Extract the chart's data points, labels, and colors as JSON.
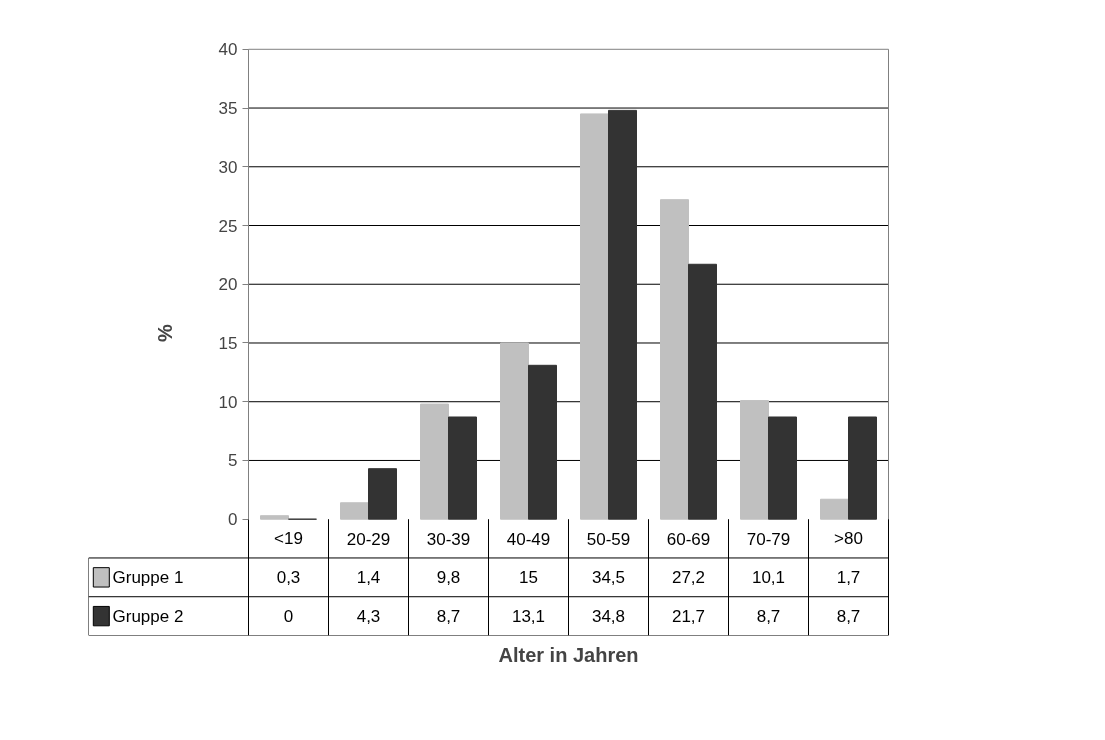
{
  "chart_data": {
    "type": "bar",
    "xlabel": "Alter in Jahren",
    "ylabel": "%",
    "categories": [
      "<19",
      "20-29",
      "30-39",
      "40-49",
      "50-59",
      "60-69",
      "70-79",
      ">80"
    ],
    "series": [
      {
        "name": "Gruppe 1",
        "color": "#c0c0c0",
        "values": [
          0.3,
          1.4,
          9.8,
          15,
          34.5,
          27.2,
          10.1,
          1.7
        ],
        "value_labels": [
          "0,3",
          "1,4",
          "9,8",
          "15",
          "34,5",
          "27,2",
          "10,1",
          "1,7"
        ]
      },
      {
        "name": "Gruppe 2",
        "color": "#333333",
        "values": [
          0,
          4.3,
          8.7,
          13.1,
          34.8,
          21.7,
          8.7,
          8.7
        ],
        "value_labels": [
          "0",
          "4,3",
          "8,7",
          "13,1",
          "34,8",
          "21,7",
          "8,7",
          "8,7"
        ]
      }
    ],
    "ylim": [
      0,
      40
    ],
    "yticks": [
      0,
      5,
      10,
      15,
      20,
      25,
      30,
      35,
      40
    ],
    "grid": "y",
    "legend": "bottom left"
  }
}
